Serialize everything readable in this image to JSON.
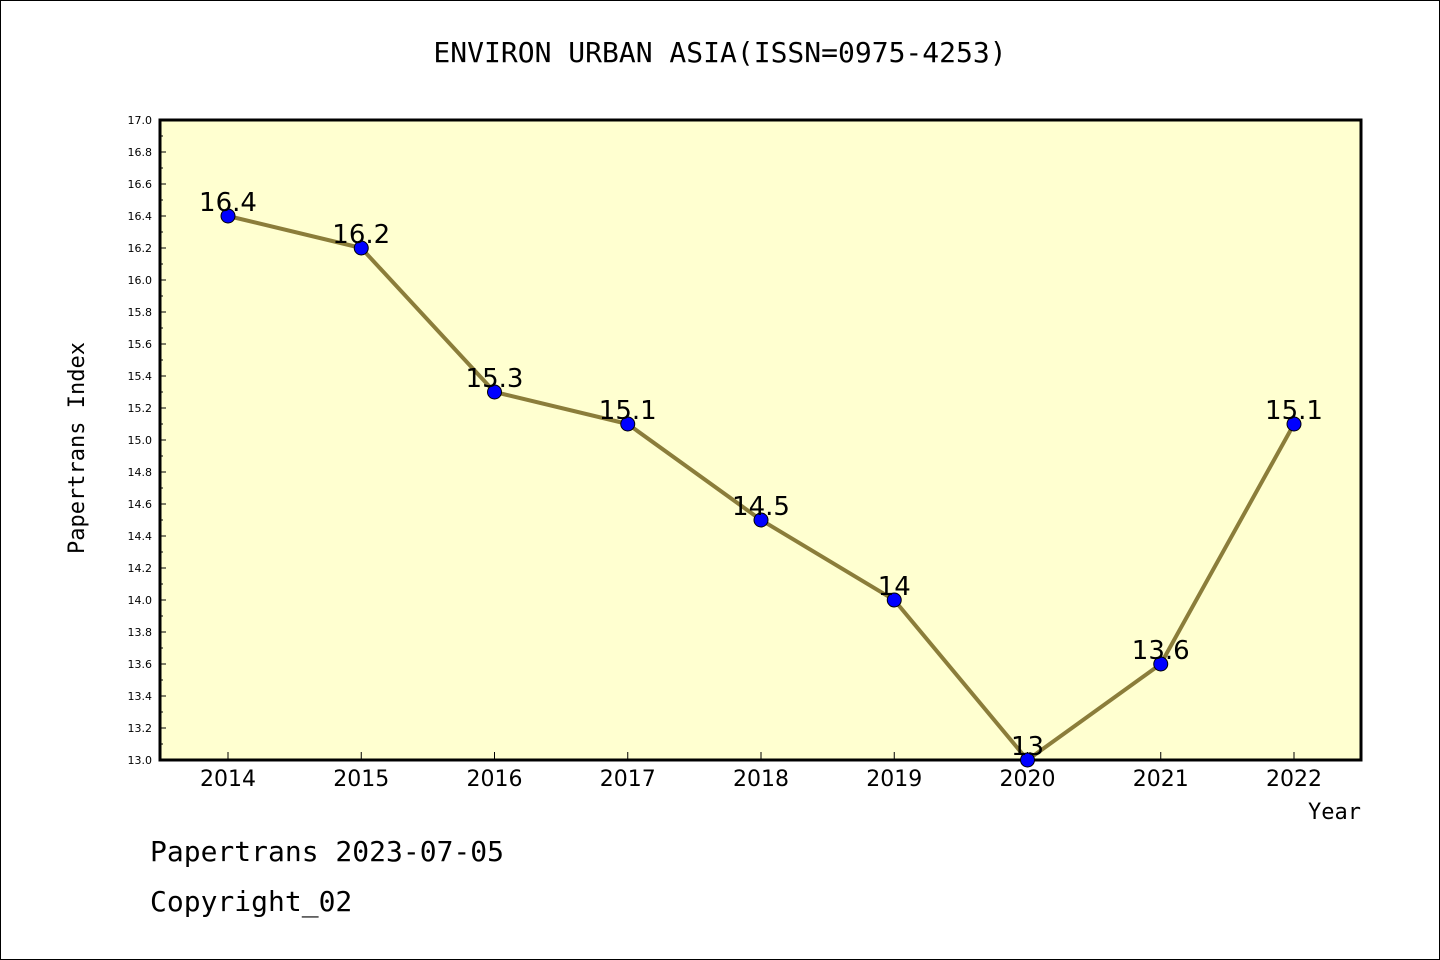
{
  "chart_data": {
    "type": "line",
    "title": "ENVIRON URBAN ASIA(ISSN=0975-4253)",
    "xlabel": "Year",
    "ylabel": "Papertrans Index",
    "categories": [
      "2014",
      "2015",
      "2016",
      "2017",
      "2018",
      "2019",
      "2020",
      "2021",
      "2022"
    ],
    "series": [
      {
        "values": [
          16.4,
          16.2,
          15.3,
          15.1,
          14.5,
          14.0,
          13.0,
          13.6,
          15.1
        ]
      }
    ],
    "data_labels": [
      "16.4",
      "16.2",
      "15.3",
      "15.1",
      "14.5",
      "14",
      "13",
      "13.6",
      "15.1"
    ],
    "ylim": [
      13.0,
      17.0
    ],
    "yticks": [
      "13.0",
      "13.2",
      "13.4",
      "13.6",
      "13.8",
      "14.0",
      "14.2",
      "14.4",
      "14.6",
      "14.8",
      "15.0",
      "15.2",
      "15.4",
      "15.6",
      "15.8",
      "16.0",
      "16.2",
      "16.4",
      "16.6",
      "16.8",
      "17.0"
    ],
    "grid": false,
    "plot_background": "#ffffd0",
    "line_color": "#8b7d3a",
    "marker_color": "#0000ff"
  },
  "footer": {
    "line1": "Papertrans 2023-07-05",
    "line2": "Copyright_02"
  }
}
